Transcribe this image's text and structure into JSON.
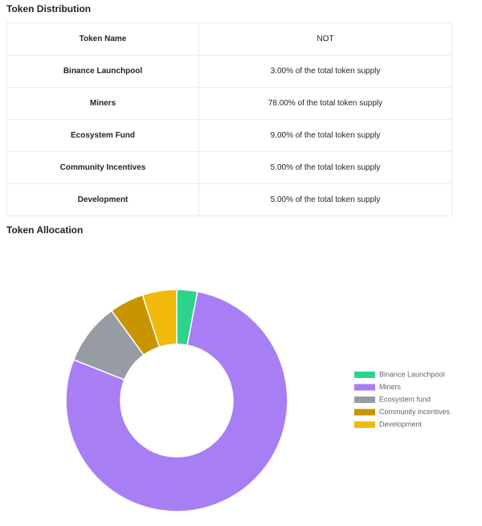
{
  "distribution": {
    "title": "Token Distribution",
    "header": [
      "Token Name",
      "NOT"
    ],
    "rows": [
      [
        "Binance Launchpool",
        "3.00%  of the total token supply"
      ],
      [
        "Miners",
        "78.00%  of the total token supply"
      ],
      [
        "Ecosystem Fund",
        "9.00%  of the total token supply"
      ],
      [
        "Community Incentives",
        "5.00%  of the total token supply"
      ],
      [
        "Development",
        "5.00%  of the total token supply"
      ]
    ]
  },
  "chart_data": {
    "type": "pie",
    "title": "Token Allocation",
    "categories": [
      "Binance Launchpool",
      "Miners",
      "Ecosystem fund",
      "Community incentives",
      "Development"
    ],
    "values": [
      3,
      78,
      9,
      5,
      5
    ],
    "colors": [
      "#2ed38b",
      "#a87ef5",
      "#969ba4",
      "#c99400",
      "#f0b90b"
    ],
    "legend": "right",
    "donut": true
  }
}
